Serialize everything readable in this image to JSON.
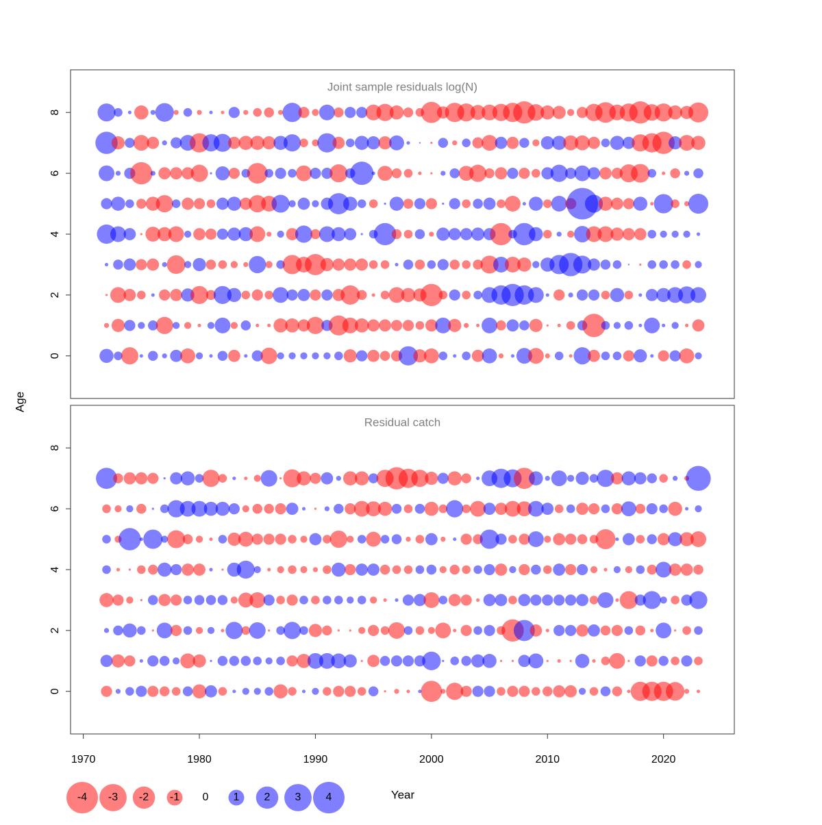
{
  "chart_data": [
    {
      "type": "bubble",
      "title": "Joint sample residuals log(N)",
      "x": [
        1972,
        1973,
        1974,
        1975,
        1976,
        1977,
        1978,
        1979,
        1980,
        1981,
        1982,
        1983,
        1984,
        1985,
        1986,
        1987,
        1988,
        1989,
        1990,
        1991,
        1992,
        1993,
        1994,
        1995,
        1996,
        1997,
        1998,
        1999,
        2000,
        2001,
        2002,
        2003,
        2004,
        2005,
        2006,
        2007,
        2008,
        2009,
        2010,
        2011,
        2012,
        2013,
        2014,
        2015,
        2016,
        2017,
        2018,
        2019,
        2020,
        2021,
        2022,
        2023
      ],
      "y": [
        8,
        7,
        6,
        5,
        4,
        3,
        2,
        1,
        0
      ],
      "values": [
        [
          1.3,
          0.3,
          0.05,
          -0.8,
          0.1,
          1.4,
          -0.1,
          0.3,
          -0.1,
          0.05,
          -0.05,
          0.5,
          -0.1,
          -0.3,
          -0.4,
          -0.1,
          1.5,
          -0.5,
          -0.2,
          1.0,
          -0.4,
          0.5,
          0.5,
          -1.0,
          -1.2,
          -0.8,
          -0.4,
          -0.3,
          -1.8,
          -0.6,
          -1.5,
          -1.3,
          -0.9,
          -1.0,
          -1.2,
          -1.5,
          -2.0,
          -1.1,
          -0.8,
          -0.7,
          -0.2,
          -0.5,
          -1.2,
          -1.7,
          -1.0,
          -1.3,
          -2.0,
          -1.1,
          -1.3,
          -0.8,
          -0.7,
          -1.6
        ],
        [
          2.0,
          -0.7,
          0.4,
          -1.0,
          -0.6,
          0.1,
          0.5,
          1.0,
          -1.5,
          1.2,
          1.3,
          -0.6,
          -0.8,
          -0.8,
          -0.7,
          0.8,
          1.2,
          -0.3,
          -0.2,
          1.5,
          -0.6,
          0.3,
          0.8,
          0.7,
          -0.7,
          0.9,
          0.05,
          0.01,
          -0.02,
          0.4,
          -0.1,
          0.3,
          -0.5,
          -1.0,
          0.6,
          -0.6,
          0.4,
          -0.2,
          0.7,
          0.8,
          -0.9,
          -0.9,
          -0.6,
          0.3,
          0.8,
          0.6,
          -1.2,
          -1.5,
          -2.0,
          0.7,
          -1.0,
          -0.8
        ],
        [
          1.0,
          0.1,
          0.5,
          -2.0,
          0.1,
          -0.6,
          -0.6,
          -0.6,
          -1.2,
          0.02,
          0.8,
          -0.5,
          0.3,
          -1.7,
          0.3,
          0.5,
          0.3,
          -1.0,
          0.5,
          0.5,
          -1.3,
          0.4,
          2.2,
          0.05,
          -0.9,
          -0.4,
          -0.3,
          -0.05,
          -0.02,
          0.1,
          0.4,
          -0.9,
          -1.2,
          -0.4,
          -0.6,
          0.5,
          -0.5,
          -0.3,
          0.6,
          1.2,
          0.5,
          1.0,
          0.6,
          -0.6,
          -0.5,
          -1.3,
          -1.4,
          0.3,
          -0.05,
          -0.4,
          0.1,
          0.4
        ],
        [
          0.5,
          0.8,
          0.3,
          -0.4,
          -0.8,
          -1.2,
          0.3,
          -0.6,
          -0.5,
          -0.3,
          0.6,
          0.8,
          -0.6,
          -1.2,
          -1.0,
          1.3,
          0.2,
          0.6,
          0.2,
          0.6,
          1.8,
          0.8,
          0.3,
          -0.3,
          0.02,
          0.8,
          -0.4,
          0.5,
          -0.5,
          0.02,
          0.5,
          -0.3,
          0.4,
          0.6,
          -0.3,
          -1.0,
          0.05,
          0.8,
          -0.3,
          1.0,
          -0.5,
          4.0,
          1.3,
          -0.8,
          -0.6,
          -0.5,
          0.8,
          -0.05,
          1.5,
          -0.3,
          -0.1,
          1.6
        ],
        [
          1.5,
          1.0,
          0.6,
          -0.02,
          -0.9,
          -0.8,
          -1.0,
          0.2,
          -0.6,
          -0.5,
          0.5,
          0.7,
          0.8,
          -1.0,
          -0.1,
          0.2,
          -0.6,
          1.2,
          -0.4,
          1.0,
          0.8,
          0.6,
          0.02,
          0.3,
          2.0,
          -0.4,
          -0.3,
          0.4,
          -0.1,
          0.7,
          0.6,
          0.6,
          0.7,
          0.6,
          -2.0,
          0.3,
          2.0,
          0.8,
          -0.3,
          0.1,
          -0.2,
          1.1,
          -1.0,
          -1.0,
          -0.7,
          -0.6,
          -0.6,
          0.3,
          0.2,
          0.2,
          0.2,
          0.05
        ],
        [
          0.05,
          0.4,
          0.6,
          -0.5,
          -0.6,
          0.1,
          -1.4,
          0.2,
          0.7,
          -0.4,
          -0.3,
          -0.2,
          -0.1,
          1.2,
          -0.2,
          0.3,
          -1.5,
          -1.0,
          -1.8,
          -0.7,
          -0.6,
          -0.6,
          -0.6,
          -0.3,
          -0.3,
          0.05,
          0.4,
          -0.4,
          0.3,
          0.5,
          -0.4,
          -0.3,
          -0.4,
          -1.3,
          1.0,
          -1.0,
          -0.8,
          0.2,
          0.8,
          1.5,
          2.2,
          1.3,
          0.6,
          0.4,
          0.3,
          0.01,
          -0.02,
          0.3,
          0.3,
          0.3,
          -0.3,
          0.2
        ],
        [
          -0.02,
          -1.0,
          -0.6,
          -0.3,
          0.05,
          -0.5,
          -0.6,
          0.7,
          -1.3,
          -0.4,
          1.3,
          0.8,
          -0.3,
          -0.5,
          -0.3,
          1.0,
          0.5,
          0.6,
          -0.5,
          0.5,
          -0.6,
          -1.5,
          -0.4,
          -0.05,
          -0.3,
          -1.0,
          -0.8,
          -0.7,
          -2.0,
          -0.3,
          0.5,
          -0.3,
          0.3,
          1.0,
          1.5,
          2.0,
          1.5,
          1.0,
          0.05,
          -0.5,
          0.1,
          0.5,
          0.5,
          -0.3,
          0.8,
          -0.3,
          0.05,
          0.6,
          0.8,
          1.0,
          1.2,
          1.0
        ],
        [
          -0.1,
          -0.7,
          0.5,
          0.2,
          0.4,
          -1.2,
          0.2,
          -0.2,
          -0.05,
          0.2,
          1.0,
          -0.2,
          0.4,
          -0.05,
          -0.05,
          -0.8,
          -0.8,
          -0.6,
          -1.2,
          0.5,
          -1.6,
          -1.0,
          -0.8,
          -0.6,
          -0.6,
          -0.5,
          -0.5,
          -0.3,
          -0.6,
          1.0,
          -0.7,
          -0.1,
          -0.05,
          1.0,
          -0.4,
          0.6,
          0.4,
          -0.7,
          -0.02,
          -0.05,
          -0.3,
          0.4,
          -2.2,
          0.3,
          0.2,
          0.3,
          0.05,
          1.0,
          0.05,
          0.2,
          -0.05,
          -0.6
        ],
        [
          0.8,
          0.3,
          -1.2,
          0.05,
          0.4,
          0.1,
          0.6,
          -0.9,
          0.2,
          0.05,
          0.4,
          -0.6,
          0.05,
          0.5,
          -1.1,
          0.2,
          0.2,
          0.2,
          0.2,
          0.2,
          0.3,
          -0.7,
          0.5,
          -0.6,
          -0.4,
          -0.5,
          1.5,
          -0.7,
          -0.9,
          0.3,
          0.05,
          0.3,
          -0.6,
          0.9,
          -0.1,
          0.05,
          1.0,
          -1.0,
          -0.1,
          0.3,
          -0.05,
          1.2,
          -0.6,
          0.3,
          0.3,
          -0.5,
          0.7,
          0.05,
          -0.5,
          0.5,
          -0.9,
          0.2
        ]
      ],
      "xlim": [
        1968.9,
        2026.1
      ],
      "ylim": [
        -1.4,
        9.4
      ],
      "yticks": [
        0,
        2,
        4,
        6,
        8
      ]
    },
    {
      "type": "bubble",
      "title": "Residual catch",
      "x": [
        1972,
        1973,
        1974,
        1975,
        1976,
        1977,
        1978,
        1979,
        1980,
        1981,
        1982,
        1983,
        1984,
        1985,
        1986,
        1987,
        1988,
        1989,
        1990,
        1991,
        1992,
        1993,
        1994,
        1995,
        1996,
        1997,
        1998,
        1999,
        2000,
        2001,
        2002,
        2003,
        2004,
        2005,
        2006,
        2007,
        2008,
        2009,
        2010,
        2011,
        2012,
        2013,
        2014,
        2015,
        2016,
        2017,
        2018,
        2019,
        2020,
        2021,
        2022,
        2023
      ],
      "y": [
        7,
        6,
        5,
        4,
        3,
        2,
        1,
        0
      ],
      "values": [
        [
          1.8,
          -0.4,
          -0.6,
          -0.6,
          -0.5,
          0.02,
          0.6,
          0.8,
          0.3,
          -1.2,
          -0.3,
          0.05,
          -0.05,
          -0.2,
          1.1,
          -0.02,
          -1.3,
          -0.8,
          -0.5,
          0.6,
          0.1,
          -0.8,
          -0.8,
          0.4,
          -1.2,
          -2.0,
          -1.5,
          -1.2,
          -0.7,
          0.5,
          -0.8,
          -0.4,
          0.05,
          1.0,
          1.5,
          1.3,
          -1.8,
          0.8,
          0.1,
          1.0,
          0.2,
          0.7,
          0.3,
          1.2,
          -0.6,
          0.8,
          0.6,
          0.4,
          -0.3,
          0.1,
          -0.1,
          2.5
        ],
        [
          -0.3,
          -0.2,
          0.2,
          -0.4,
          0.02,
          0.3,
          1.2,
          1.0,
          1.0,
          0.8,
          0.8,
          0.5,
          -0.2,
          -0.4,
          -0.4,
          -0.5,
          0.6,
          0.05,
          -0.02,
          0.1,
          0.4,
          -0.5,
          -1.0,
          -0.9,
          -0.8,
          0.4,
          -0.3,
          0.4,
          -0.8,
          -0.3,
          1.2,
          -0.3,
          -1.0,
          0.6,
          -0.6,
          -1.0,
          -0.9,
          1.0,
          0.6,
          -0.3,
          0.3,
          -0.6,
          -0.5,
          0.3,
          -0.5,
          0.9,
          -0.4,
          0.5,
          0.3,
          -0.8,
          0.05,
          0.2
        ],
        [
          0.3,
          -0.2,
          2.0,
          0.05,
          1.5,
          0.2,
          -1.3,
          -0.4,
          -0.2,
          -0.05,
          0.3,
          -0.7,
          -0.9,
          -0.5,
          -0.5,
          -0.5,
          -0.3,
          -0.2,
          0.6,
          -0.3,
          -1.2,
          -0.2,
          0.3,
          -0.9,
          0.3,
          0.4,
          -0.1,
          -0.3,
          0.6,
          -0.1,
          0.05,
          -0.5,
          -0.4,
          1.5,
          0.5,
          -0.3,
          -0.5,
          1.0,
          -0.2,
          -0.6,
          -0.5,
          -0.4,
          -0.3,
          -1.6,
          0.05,
          0.6,
          -0.3,
          0.4,
          -0.6,
          0.8,
          -0.8,
          -1.0
        ],
        [
          0.3,
          -0.05,
          -0.02,
          -0.3,
          -0.4,
          0.8,
          0.5,
          -0.6,
          -0.6,
          0.05,
          -0.02,
          0.8,
          1.3,
          0.2,
          -0.05,
          -0.2,
          -0.3,
          -0.2,
          -0.1,
          -0.3,
          0.8,
          -0.5,
          0.6,
          0.6,
          -0.4,
          -0.3,
          -0.3,
          0.3,
          0.4,
          -0.2,
          -0.4,
          -0.3,
          0.3,
          0.5,
          -0.6,
          0.2,
          -0.5,
          0.4,
          -0.3,
          0.6,
          -0.5,
          0.5,
          -0.2,
          -0.05,
          0.2,
          -0.2,
          0.3,
          -0.4,
          1.0,
          -0.6,
          -0.6,
          -0.4
        ],
        [
          -0.8,
          -0.5,
          -0.2,
          -0.02,
          0.4,
          -0.6,
          -0.5,
          0.3,
          0.4,
          0.4,
          0.4,
          -0.2,
          -0.9,
          -1.0,
          0.5,
          -0.3,
          -0.5,
          0.3,
          -0.3,
          0.3,
          0.3,
          0.2,
          0.3,
          -0.2,
          -0.05,
          0.05,
          0.5,
          0.6,
          -1.0,
          0.3,
          -0.6,
          -0.5,
          -0.05,
          0.6,
          0.6,
          -0.3,
          0.6,
          0.5,
          0.5,
          0.5,
          0.5,
          0.6,
          -0.3,
          1.0,
          -0.05,
          -1.3,
          0.5,
          1.3,
          0.2,
          -0.3,
          0.5,
          1.3
        ],
        [
          0.1,
          0.4,
          0.8,
          0.3,
          -0.02,
          1.0,
          -0.5,
          0.3,
          -0.2,
          0.2,
          -0.05,
          1.2,
          -0.3,
          1.1,
          -0.02,
          0.3,
          1.2,
          0.3,
          -0.7,
          -0.4,
          -0.02,
          -0.02,
          -0.2,
          -0.5,
          -0.3,
          -1.1,
          0.3,
          -0.3,
          -0.2,
          -1.0,
          -0.05,
          -0.5,
          0.3,
          0.5,
          -0.3,
          -2.0,
          1.8,
          -0.6,
          -0.05,
          0.5,
          0.5,
          -0.6,
          0.6,
          -0.4,
          -0.5,
          0.3,
          -0.4,
          -0.05,
          1.0,
          -0.02,
          -0.3,
          0.3
        ],
        [
          0.6,
          -0.7,
          -0.5,
          0.05,
          0.5,
          0.4,
          0.2,
          -0.9,
          -0.7,
          0.02,
          0.4,
          0.4,
          0.4,
          0.3,
          0.2,
          0.3,
          -0.5,
          -0.8,
          1.0,
          1.0,
          0.9,
          0.7,
          -0.02,
          -0.6,
          0.4,
          0.5,
          0.5,
          0.5,
          1.4,
          0.02,
          0.3,
          0.4,
          0.7,
          0.8,
          -0.02,
          -0.02,
          0.6,
          0.9,
          -0.02,
          -0.05,
          -0.02,
          0.8,
          -0.05,
          -0.3,
          -1.0,
          -0.02,
          0.5,
          -0.5,
          0.4,
          -0.3,
          0.5,
          -0.3
        ],
        [
          -0.5,
          0.1,
          0.3,
          0.5,
          -0.5,
          -0.4,
          -0.3,
          0.4,
          -0.8,
          0.6,
          -0.3,
          0.05,
          0.2,
          0.2,
          0.3,
          -0.8,
          -0.3,
          0.05,
          0.2,
          -0.3,
          -0.5,
          -0.5,
          -0.3,
          0.4,
          -0.02,
          -0.1,
          -0.05,
          0.05,
          -1.8,
          -0.1,
          -1.2,
          -0.5,
          0.5,
          0.5,
          -0.3,
          -0.5,
          -0.5,
          -0.3,
          -0.4,
          -0.6,
          -0.6,
          0.2,
          -0.3,
          0.4,
          -0.4,
          -0.05,
          -1.5,
          -1.5,
          -1.5,
          -1.4,
          -0.1,
          -0.05
        ]
      ],
      "xlim": [
        1968.9,
        2026.1
      ],
      "ylim": [
        -1.4,
        9.4
      ],
      "yticks": [
        0,
        2,
        4,
        6,
        8
      ],
      "xticks": [
        1970,
        1980,
        1990,
        2000,
        2010,
        2020
      ],
      "xlabel": "Year"
    }
  ],
  "ylabel": "Age",
  "legend": {
    "values": [
      -4,
      -3,
      -2,
      -1,
      0,
      1,
      2,
      3,
      4
    ]
  },
  "colors": {
    "negative": "#ff0000",
    "positive": "#0000ff"
  },
  "alpha": 0.5
}
